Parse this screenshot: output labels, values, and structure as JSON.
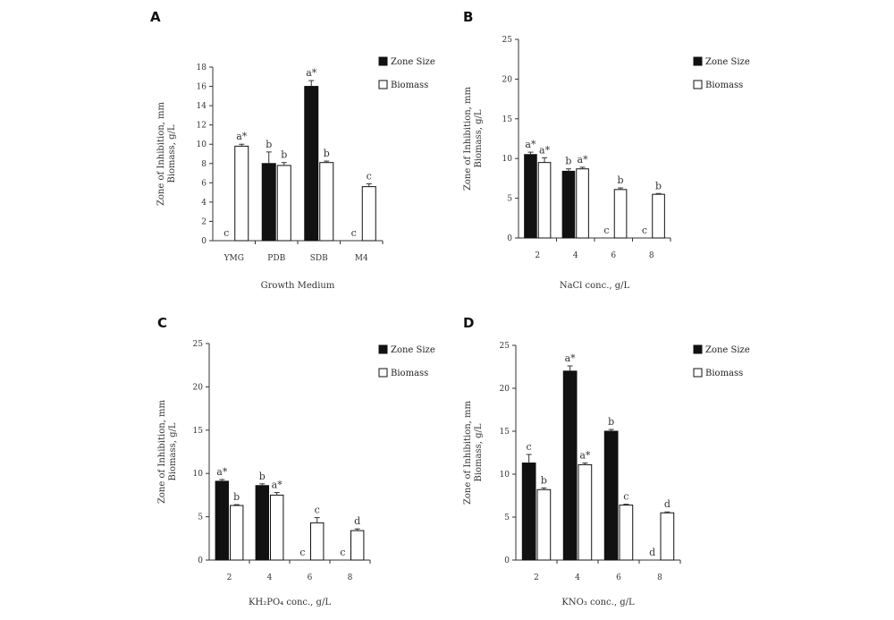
{
  "chart_data": [
    {
      "type": "bar",
      "panel": "A",
      "categories": [
        "YMG",
        "PDB",
        "SDB",
        "M4"
      ],
      "series": [
        {
          "name": "Zone Size",
          "color": "#111111",
          "values": [
            0,
            8.0,
            16.0,
            0
          ],
          "errors": [
            0,
            1.2,
            0.6,
            0
          ],
          "labels": [
            "c",
            "b",
            "a*",
            "c"
          ]
        },
        {
          "name": "Biomass",
          "color": "#ffffff",
          "values": [
            9.8,
            7.8,
            8.1,
            5.6
          ],
          "errors": [
            0.2,
            0.3,
            0.15,
            0.3
          ],
          "labels": [
            "a*",
            "b",
            "b",
            "c"
          ]
        }
      ],
      "xlabel": "Growth Medium",
      "ylabel_lines": [
        "Zone of Inhibition, mm",
        "Biomass, g/L"
      ],
      "ylim": [
        0,
        18
      ],
      "yticks": [
        0,
        2,
        4,
        6,
        8,
        10,
        12,
        14,
        16,
        18
      ],
      "legend": "top-right",
      "grid": false
    },
    {
      "type": "bar",
      "panel": "B",
      "categories": [
        "2",
        "4",
        "6",
        "8"
      ],
      "series": [
        {
          "name": "Zone Size",
          "color": "#111111",
          "values": [
            10.5,
            8.4,
            0,
            0
          ],
          "errors": [
            0.3,
            0.3,
            0,
            0
          ],
          "labels": [
            "a*",
            "b",
            "c",
            "c"
          ]
        },
        {
          "name": "Biomass",
          "color": "#ffffff",
          "values": [
            9.5,
            8.7,
            6.1,
            5.5
          ],
          "errors": [
            0.6,
            0.2,
            0.2,
            0.1
          ],
          "labels": [
            "a*",
            "a*",
            "b",
            "b"
          ]
        }
      ],
      "xlabel": "NaCl conc., g/L",
      "ylabel_lines": [
        "Zone of Inhibition, mm",
        "Biomass, g/L"
      ],
      "ylim": [
        0,
        25
      ],
      "yticks": [
        0,
        5,
        10,
        15,
        20,
        25
      ],
      "legend": "top-right",
      "grid": false
    },
    {
      "type": "bar",
      "panel": "C",
      "categories": [
        "2",
        "4",
        "6",
        "8"
      ],
      "series": [
        {
          "name": "Zone Size",
          "color": "#111111",
          "values": [
            9.1,
            8.6,
            0,
            0
          ],
          "errors": [
            0.2,
            0.2,
            0,
            0
          ],
          "labels": [
            "a*",
            "b",
            "c",
            "c"
          ]
        },
        {
          "name": "Biomass",
          "color": "#ffffff",
          "values": [
            6.3,
            7.5,
            4.3,
            3.4
          ],
          "errors": [
            0.1,
            0.3,
            0.6,
            0.2
          ],
          "labels": [
            "b",
            "a*",
            "c",
            "d"
          ]
        }
      ],
      "xlabel": "KH₂PO₄ conc., g/L",
      "ylabel_lines": [
        "Zone of Inhibition, mm",
        "Biomass, g/L"
      ],
      "ylim": [
        0,
        25
      ],
      "yticks": [
        0,
        5,
        10,
        15,
        20,
        25
      ],
      "legend": "top-right",
      "grid": false
    },
    {
      "type": "bar",
      "panel": "D",
      "categories": [
        "2",
        "4",
        "6",
        "8"
      ],
      "series": [
        {
          "name": "Zone Size",
          "color": "#111111",
          "values": [
            11.3,
            22.0,
            15.0,
            0
          ],
          "errors": [
            1.0,
            0.6,
            0.2,
            0
          ],
          "labels": [
            "c",
            "a*",
            "b",
            "d"
          ]
        },
        {
          "name": "Biomass",
          "color": "#ffffff",
          "values": [
            8.2,
            11.1,
            6.4,
            5.5
          ],
          "errors": [
            0.2,
            0.2,
            0.1,
            0.1
          ],
          "labels": [
            "b",
            "a*",
            "c",
            "d"
          ]
        }
      ],
      "xlabel": "KNO₃ conc., g/L",
      "ylabel_lines": [
        "Zone of Inhibition, mm",
        "Biomass, g/L"
      ],
      "ylim": [
        0,
        25
      ],
      "yticks": [
        0,
        5,
        10,
        15,
        20,
        25
      ],
      "legend": "top-right",
      "grid": false
    }
  ]
}
